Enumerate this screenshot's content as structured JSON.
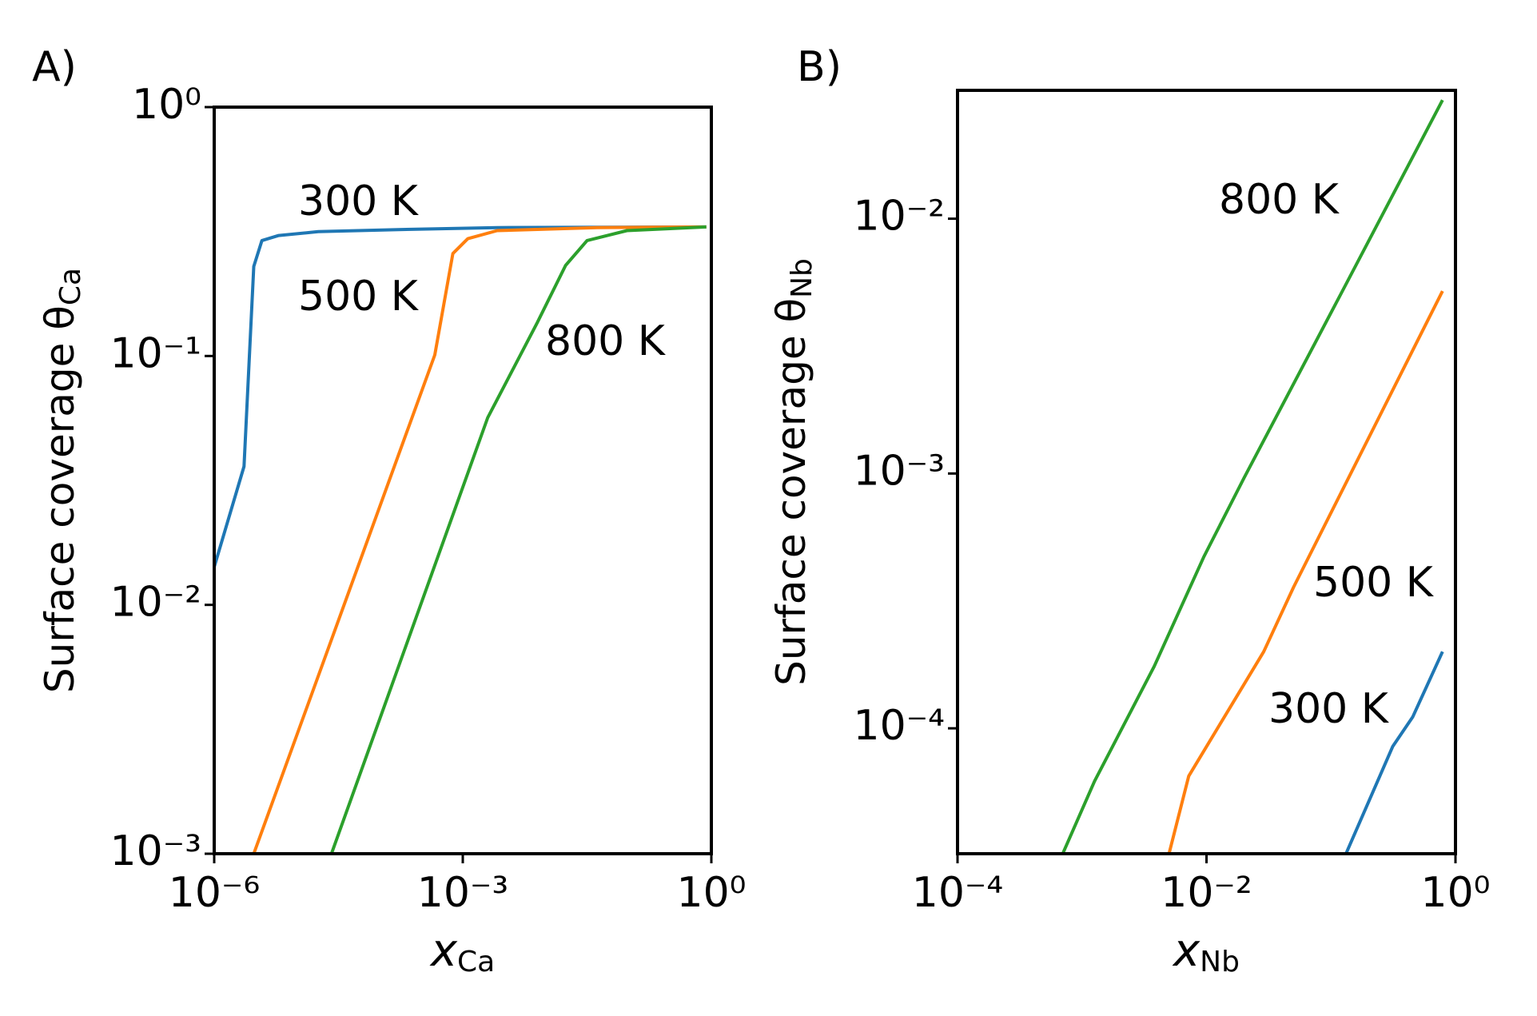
{
  "chart_data": [
    {
      "type": "line",
      "panel_label": "A)",
      "xlabel": {
        "text": "x",
        "sub": "Ca"
      },
      "ylabel": {
        "text": "Surface coverage θ",
        "sub": "Ca"
      },
      "xscale": "log",
      "yscale": "log",
      "xlim": [
        1e-06,
        1
      ],
      "ylim": [
        0.001,
        1
      ],
      "xticks": [
        {
          "value": 1e-06,
          "label": "10⁻⁶"
        },
        {
          "value": 0.001,
          "label": "10⁻³"
        },
        {
          "value": 1,
          "label": "10⁰"
        }
      ],
      "yticks": [
        {
          "value": 0.001,
          "label": "10⁻³"
        },
        {
          "value": 0.01,
          "label": "10⁻²"
        },
        {
          "value": 0.1,
          "label": "10⁻¹"
        },
        {
          "value": 1,
          "label": "10⁰"
        }
      ],
      "series": [
        {
          "name": "300 K",
          "color": "#1f77b4",
          "x": [
            1e-06,
            2.29e-06,
            3e-06,
            3.77e-06,
            6e-06,
            1.8e-05,
            0.000166,
            0.0026,
            0.87
          ],
          "values": [
            0.0142,
            0.036,
            0.229,
            0.291,
            0.305,
            0.316,
            0.322,
            0.328,
            0.33
          ]
        },
        {
          "name": "500 K",
          "color": "#ff7f0e",
          "x": [
            3e-06,
            0.00046,
            0.00076,
            0.00115,
            0.0026,
            0.0417,
            0.87
          ],
          "values": [
            0.001,
            0.101,
            0.258,
            0.296,
            0.319,
            0.328,
            0.33
          ]
        },
        {
          "name": "800 K",
          "color": "#2ca02c",
          "x": [
            2.6e-05,
            0.002,
            0.0079,
            0.0174,
            0.0316,
            0.0955,
            0.87
          ],
          "values": [
            0.001,
            0.0565,
            0.136,
            0.231,
            0.291,
            0.319,
            0.33
          ]
        }
      ]
    },
    {
      "type": "line",
      "panel_label": "B)",
      "xlabel": {
        "text": "x",
        "sub": "Nb"
      },
      "ylabel": {
        "text": "Surface coverage θ",
        "sub": "Nb"
      },
      "xscale": "log",
      "yscale": "log",
      "xlim": [
        0.0001,
        1
      ],
      "ylim": [
        3.22e-05,
        0.0319
      ],
      "xticks": [
        {
          "value": 0.0001,
          "label": "10⁻⁴"
        },
        {
          "value": 0.01,
          "label": "10⁻²"
        },
        {
          "value": 1,
          "label": "10⁰"
        }
      ],
      "yticks": [
        {
          "value": 0.0001,
          "label": "10⁻⁴"
        },
        {
          "value": 0.001,
          "label": "10⁻³"
        },
        {
          "value": 0.01,
          "label": "10⁻²"
        }
      ],
      "series": [
        {
          "name": "300 K",
          "color": "#1f77b4",
          "x": [
            0.132,
            0.314,
            0.454,
            0.787
          ],
          "values": [
            3.22e-05,
            8.5e-05,
            0.000111,
            0.0002
          ]
        },
        {
          "name": "500 K",
          "color": "#ff7f0e",
          "x": [
            0.005,
            0.0072,
            0.0288,
            0.05,
            0.787
          ],
          "values": [
            3.22e-05,
            6.5e-05,
            0.0002,
            0.000358,
            0.0052
          ]
        },
        {
          "name": "800 K",
          "color": "#2ca02c",
          "x": [
            0.0007,
            0.00126,
            0.0038,
            0.0095,
            0.02,
            0.126,
            0.787
          ],
          "values": [
            3.22e-05,
            6.2e-05,
            0.000175,
            0.00047,
            0.00096,
            0.0053,
            0.0292
          ]
        }
      ]
    }
  ]
}
